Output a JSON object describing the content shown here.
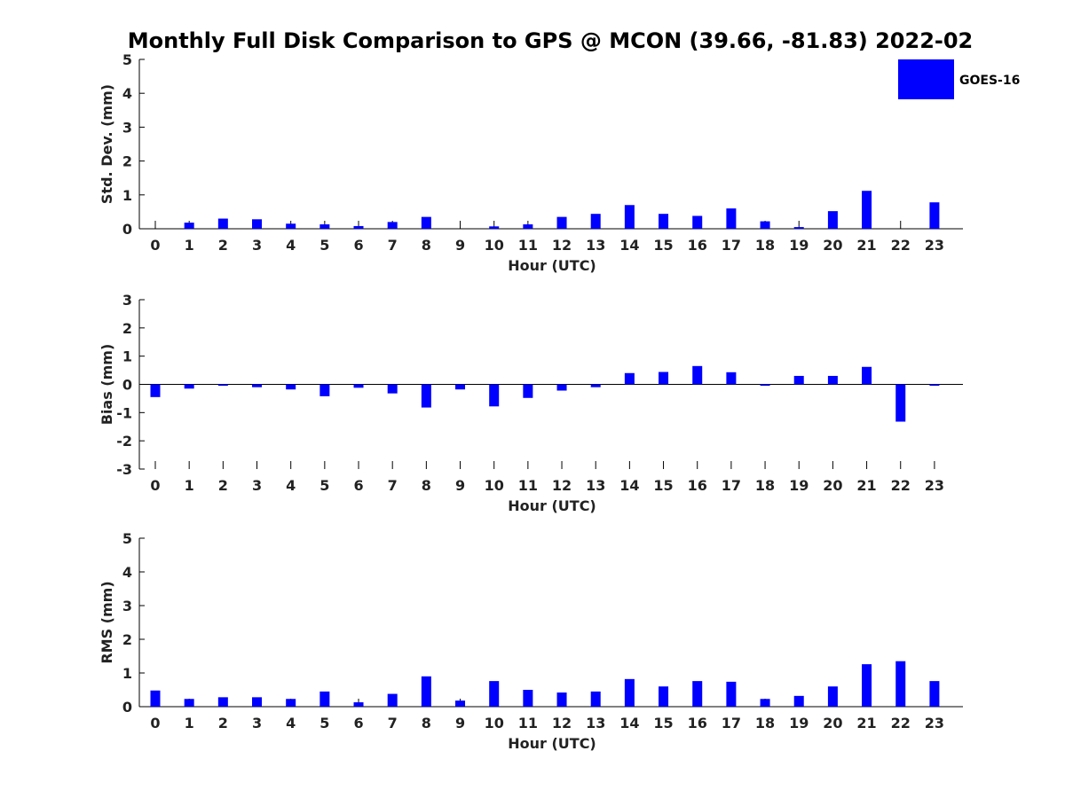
{
  "title": "Monthly Full Disk Comparison to GPS @ MCON (39.66, -81.83) 2022-02",
  "legend": {
    "label": "GOES-16",
    "color": "#0000ff"
  },
  "chart_data": [
    {
      "type": "bar",
      "categories": [
        "0",
        "1",
        "2",
        "3",
        "4",
        "5",
        "6",
        "7",
        "8",
        "9",
        "10",
        "11",
        "12",
        "13",
        "14",
        "15",
        "16",
        "17",
        "18",
        "19",
        "20",
        "21",
        "22",
        "23"
      ],
      "values": [
        null,
        0.18,
        0.3,
        0.28,
        0.15,
        0.13,
        0.08,
        0.2,
        0.35,
        null,
        0.07,
        0.13,
        0.35,
        0.44,
        0.7,
        0.44,
        0.38,
        0.6,
        0.22,
        0.05,
        0.52,
        1.12,
        null,
        0.78
      ],
      "ylim": [
        0,
        5
      ],
      "yticks": [
        "0",
        "1",
        "2",
        "3",
        "4",
        "5"
      ],
      "xlabel": "Hour (UTC)",
      "ylabel": "Std. Dev. (mm)",
      "legend": "top-right"
    },
    {
      "type": "bar",
      "categories": [
        "0",
        "1",
        "2",
        "3",
        "4",
        "5",
        "6",
        "7",
        "8",
        "9",
        "10",
        "11",
        "12",
        "13",
        "14",
        "15",
        "16",
        "17",
        "18",
        "19",
        "20",
        "21",
        "22",
        "23"
      ],
      "values": [
        -0.45,
        -0.15,
        -0.05,
        -0.1,
        -0.18,
        -0.42,
        -0.12,
        -0.32,
        -0.82,
        -0.18,
        -0.78,
        -0.48,
        -0.22,
        -0.1,
        0.4,
        0.44,
        0.65,
        0.43,
        -0.05,
        0.3,
        0.3,
        0.62,
        -1.32,
        -0.05
      ],
      "ylim": [
        -3,
        3
      ],
      "yticks": [
        "-3",
        "-2",
        "-1",
        "0",
        "1",
        "2",
        "3"
      ],
      "xlabel": "Hour (UTC)",
      "ylabel": "Bias (mm)"
    },
    {
      "type": "bar",
      "categories": [
        "0",
        "1",
        "2",
        "3",
        "4",
        "5",
        "6",
        "7",
        "8",
        "9",
        "10",
        "11",
        "12",
        "13",
        "14",
        "15",
        "16",
        "17",
        "18",
        "19",
        "20",
        "21",
        "22",
        "23"
      ],
      "values": [
        0.48,
        0.23,
        0.28,
        0.28,
        0.23,
        0.45,
        0.13,
        0.38,
        0.9,
        0.18,
        0.76,
        0.5,
        0.42,
        0.45,
        0.82,
        0.6,
        0.76,
        0.74,
        0.23,
        0.32,
        0.6,
        1.26,
        1.35,
        0.76
      ],
      "ylim": [
        0,
        5
      ],
      "yticks": [
        "0",
        "1",
        "2",
        "3",
        "4",
        "5"
      ],
      "xlabel": "Hour (UTC)",
      "ylabel": "RMS (mm)"
    }
  ]
}
